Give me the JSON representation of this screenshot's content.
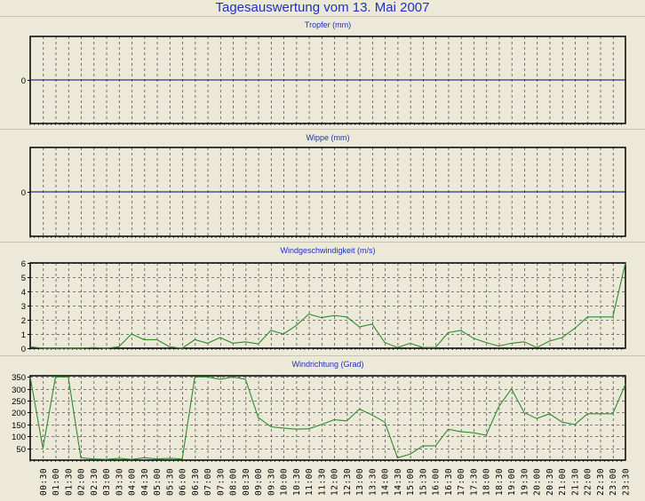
{
  "title": "Tagesauswertung vom 13. Mai 2007",
  "colors": {
    "title": "#2030C0",
    "line": "#2E8B2E",
    "zero_line": "#000080",
    "grid": "#555555",
    "background": "#ECE9D8"
  },
  "x_tick_labels": [
    "00:30",
    "01:00",
    "01:30",
    "02:00",
    "02:30",
    "03:00",
    "03:30",
    "04:00",
    "04:30",
    "05:00",
    "05:30",
    "06:00",
    "06:30",
    "07:00",
    "07:30",
    "08:00",
    "08:30",
    "09:00",
    "09:30",
    "10:00",
    "10:30",
    "11:00",
    "11:30",
    "12:00",
    "12:30",
    "13:00",
    "13:30",
    "14:00",
    "14:30",
    "15:00",
    "15:30",
    "16:00",
    "16:30",
    "17:00",
    "17:30",
    "18:00",
    "18:30",
    "19:00",
    "19:30",
    "20:00",
    "20:30",
    "21:00",
    "21:30",
    "22:00",
    "22:30",
    "23:00",
    "23:30"
  ],
  "chart_data": [
    {
      "type": "line",
      "title": "Tropfer (mm)",
      "y_ticks": [
        "0"
      ],
      "ylim": [
        -1,
        1
      ],
      "grid": true,
      "x_range": [
        "00:00",
        "23:30"
      ],
      "values": [
        0,
        0,
        0,
        0,
        0,
        0,
        0,
        0,
        0,
        0,
        0,
        0,
        0,
        0,
        0,
        0,
        0,
        0,
        0,
        0,
        0,
        0,
        0,
        0,
        0,
        0,
        0,
        0,
        0,
        0,
        0,
        0,
        0,
        0,
        0,
        0,
        0,
        0,
        0,
        0,
        0,
        0,
        0,
        0,
        0,
        0,
        0,
        0
      ]
    },
    {
      "type": "line",
      "title": "Wippe (mm)",
      "y_ticks": [
        "0"
      ],
      "ylim": [
        -1,
        1
      ],
      "grid": true,
      "x_range": [
        "00:00",
        "23:30"
      ],
      "values": [
        0,
        0,
        0,
        0,
        0,
        0,
        0,
        0,
        0,
        0,
        0,
        0,
        0,
        0,
        0,
        0,
        0,
        0,
        0,
        0,
        0,
        0,
        0,
        0,
        0,
        0,
        0,
        0,
        0,
        0,
        0,
        0,
        0,
        0,
        0,
        0,
        0,
        0,
        0,
        0,
        0,
        0,
        0,
        0,
        0,
        0,
        0,
        0
      ]
    },
    {
      "type": "line",
      "title": "Windgeschwindigkeit (m/s)",
      "y_ticks": [
        "0",
        "1",
        "2",
        "3",
        "4",
        "5",
        "6"
      ],
      "ylim": [
        0,
        6
      ],
      "grid": true,
      "x_range": [
        "00:00",
        "23:30"
      ],
      "values": [
        0.1,
        0,
        0,
        0,
        0,
        0.05,
        0,
        0.1,
        1.0,
        0.6,
        0.6,
        0.1,
        0,
        0.6,
        0.35,
        0.75,
        0.35,
        0.45,
        0.3,
        1.25,
        1.0,
        1.6,
        2.4,
        2.15,
        2.3,
        2.2,
        1.5,
        1.7,
        0.4,
        0.05,
        0.35,
        0.05,
        0.05,
        1.1,
        1.25,
        0.7,
        0.4,
        0.15,
        0.35,
        0.45,
        0.05,
        0.5,
        0.75,
        1.4,
        2.2,
        2.2,
        2.2,
        6.0
      ]
    },
    {
      "type": "line",
      "title": "Windrichtung (Grad)",
      "y_ticks": [
        "50",
        "100",
        "150",
        "200",
        "250",
        "300",
        "350"
      ],
      "ylim": [
        0,
        355
      ],
      "grid": true,
      "x_range": [
        "00:00",
        "23:30"
      ],
      "values": [
        350,
        50,
        350,
        350,
        10,
        5,
        3,
        8,
        3,
        10,
        5,
        8,
        5,
        350,
        350,
        340,
        350,
        340,
        180,
        140,
        135,
        130,
        132,
        150,
        170,
        165,
        215,
        190,
        160,
        10,
        25,
        60,
        60,
        130,
        120,
        115,
        105,
        225,
        300,
        200,
        175,
        195,
        160,
        150,
        195,
        195,
        195,
        320
      ]
    }
  ]
}
